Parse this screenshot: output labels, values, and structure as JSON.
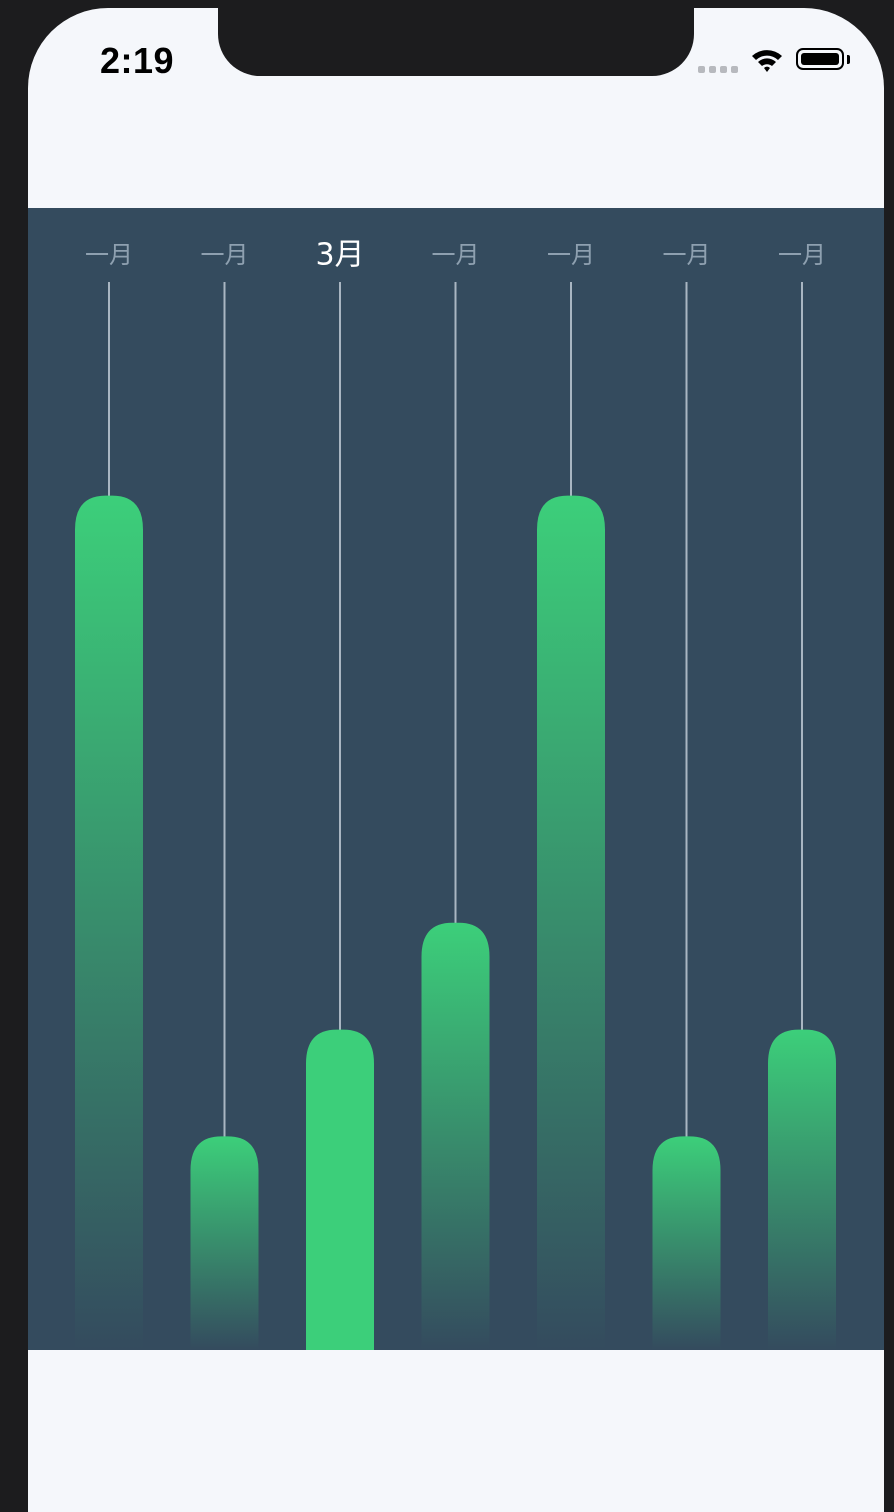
{
  "status_bar": {
    "time": "2:19",
    "icons": [
      "cellular-signal-icon",
      "wifi-icon",
      "battery-icon"
    ]
  },
  "chart_data": {
    "type": "bar",
    "categories": [
      "一月",
      "一月",
      "3月",
      "一月",
      "一月",
      "一月",
      "一月"
    ],
    "values": [
      80,
      20,
      30,
      40,
      80,
      20,
      30
    ],
    "ylim": [
      0,
      100
    ],
    "selected_index": 2,
    "grid": false,
    "legend": "none",
    "colors": {
      "bar_top": "#3ccf7a",
      "bar_bottom": "#344b5e",
      "selected_bar": "#3ccf7a",
      "stem": "#a9b6c2",
      "label": "#8ea0b0",
      "selected_label": "#ffffff",
      "background": "#344b5e"
    }
  }
}
